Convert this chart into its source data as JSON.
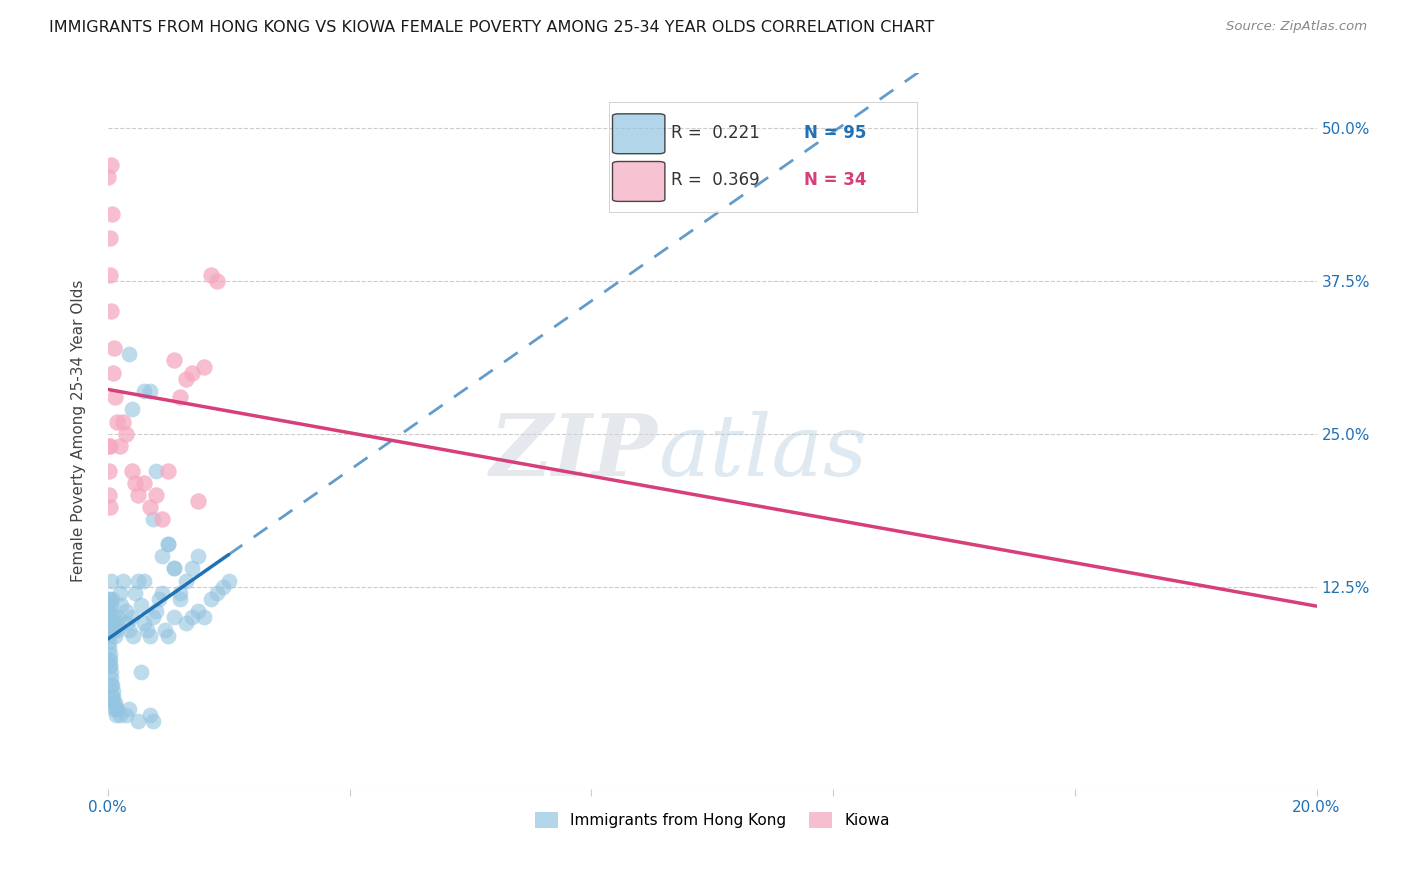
{
  "title": "IMMIGRANTS FROM HONG KONG VS KIOWA FEMALE POVERTY AMONG 25-34 YEAR OLDS CORRELATION CHART",
  "source": "Source: ZipAtlas.com",
  "ylabel": "Female Poverty Among 25-34 Year Olds",
  "legend1_R": "0.221",
  "legend1_N": "95",
  "legend2_R": "0.369",
  "legend2_N": "34",
  "blue_color": "#93c4e0",
  "pink_color": "#f4a8c0",
  "blue_line_color": "#2171b5",
  "pink_line_color": "#d63f7a",
  "xlim": [
    0.0,
    0.2
  ],
  "ylim": [
    -0.04,
    0.545
  ],
  "ytick_vals": [
    0.0,
    0.125,
    0.25,
    0.375,
    0.5
  ],
  "ytick_labels": [
    "",
    "12.5%",
    "25.0%",
    "37.5%",
    "50.0%"
  ],
  "hk_x": [
    0.0001,
    0.0001,
    0.0001,
    0.0001,
    0.0001,
    0.0001,
    0.0002,
    0.0002,
    0.0002,
    0.0002,
    0.0003,
    0.0003,
    0.0003,
    0.0003,
    0.0004,
    0.0004,
    0.0004,
    0.0005,
    0.0005,
    0.0005,
    0.0006,
    0.0006,
    0.0007,
    0.0007,
    0.0007,
    0.0008,
    0.0008,
    0.0009,
    0.0009,
    0.001,
    0.001,
    0.0011,
    0.0012,
    0.0012,
    0.0013,
    0.0014,
    0.0015,
    0.0015,
    0.0016,
    0.0017,
    0.002,
    0.002,
    0.0022,
    0.0025,
    0.003,
    0.003,
    0.0032,
    0.0035,
    0.0035,
    0.004,
    0.0042,
    0.0045,
    0.005,
    0.005,
    0.0055,
    0.0055,
    0.006,
    0.006,
    0.0065,
    0.007,
    0.007,
    0.0075,
    0.0075,
    0.008,
    0.0085,
    0.009,
    0.0095,
    0.01,
    0.01,
    0.011,
    0.011,
    0.012,
    0.013,
    0.014,
    0.015,
    0.016,
    0.017,
    0.018,
    0.019,
    0.02,
    0.0035,
    0.004,
    0.006,
    0.007,
    0.0075,
    0.008,
    0.009,
    0.01,
    0.011,
    0.012,
    0.013,
    0.014,
    0.015
  ],
  "hk_y": [
    0.1,
    0.095,
    0.105,
    0.09,
    0.085,
    0.115,
    0.075,
    0.08,
    0.065,
    0.105,
    0.07,
    0.06,
    0.115,
    0.09,
    0.065,
    0.06,
    0.1,
    0.055,
    0.045,
    0.11,
    0.05,
    0.13,
    0.045,
    0.035,
    0.115,
    0.04,
    0.1,
    0.035,
    0.095,
    0.03,
    0.09,
    0.025,
    0.03,
    0.085,
    0.025,
    0.02,
    0.025,
    0.095,
    0.09,
    0.1,
    0.02,
    0.12,
    0.11,
    0.13,
    0.02,
    0.105,
    0.095,
    0.025,
    0.09,
    0.1,
    0.085,
    0.12,
    0.015,
    0.13,
    0.11,
    0.055,
    0.13,
    0.095,
    0.09,
    0.085,
    0.02,
    0.1,
    0.015,
    0.105,
    0.115,
    0.12,
    0.09,
    0.085,
    0.16,
    0.1,
    0.14,
    0.115,
    0.095,
    0.1,
    0.105,
    0.1,
    0.115,
    0.12,
    0.125,
    0.13,
    0.315,
    0.27,
    0.285,
    0.285,
    0.18,
    0.22,
    0.15,
    0.16,
    0.14,
    0.12,
    0.13,
    0.14,
    0.15
  ],
  "ki_x": [
    0.0001,
    0.0001,
    0.0002,
    0.0002,
    0.0003,
    0.0003,
    0.0003,
    0.0004,
    0.0005,
    0.0006,
    0.0007,
    0.0008,
    0.001,
    0.0012,
    0.0015,
    0.002,
    0.0025,
    0.003,
    0.004,
    0.0045,
    0.005,
    0.006,
    0.007,
    0.008,
    0.009,
    0.01,
    0.011,
    0.012,
    0.013,
    0.014,
    0.015,
    0.016,
    0.017,
    0.018
  ],
  "ki_y": [
    0.46,
    0.24,
    0.22,
    0.2,
    0.41,
    0.24,
    0.19,
    0.38,
    0.47,
    0.35,
    0.43,
    0.3,
    0.32,
    0.28,
    0.26,
    0.24,
    0.26,
    0.25,
    0.22,
    0.21,
    0.2,
    0.21,
    0.19,
    0.2,
    0.18,
    0.22,
    0.31,
    0.28,
    0.295,
    0.3,
    0.195,
    0.305,
    0.38,
    0.375
  ]
}
